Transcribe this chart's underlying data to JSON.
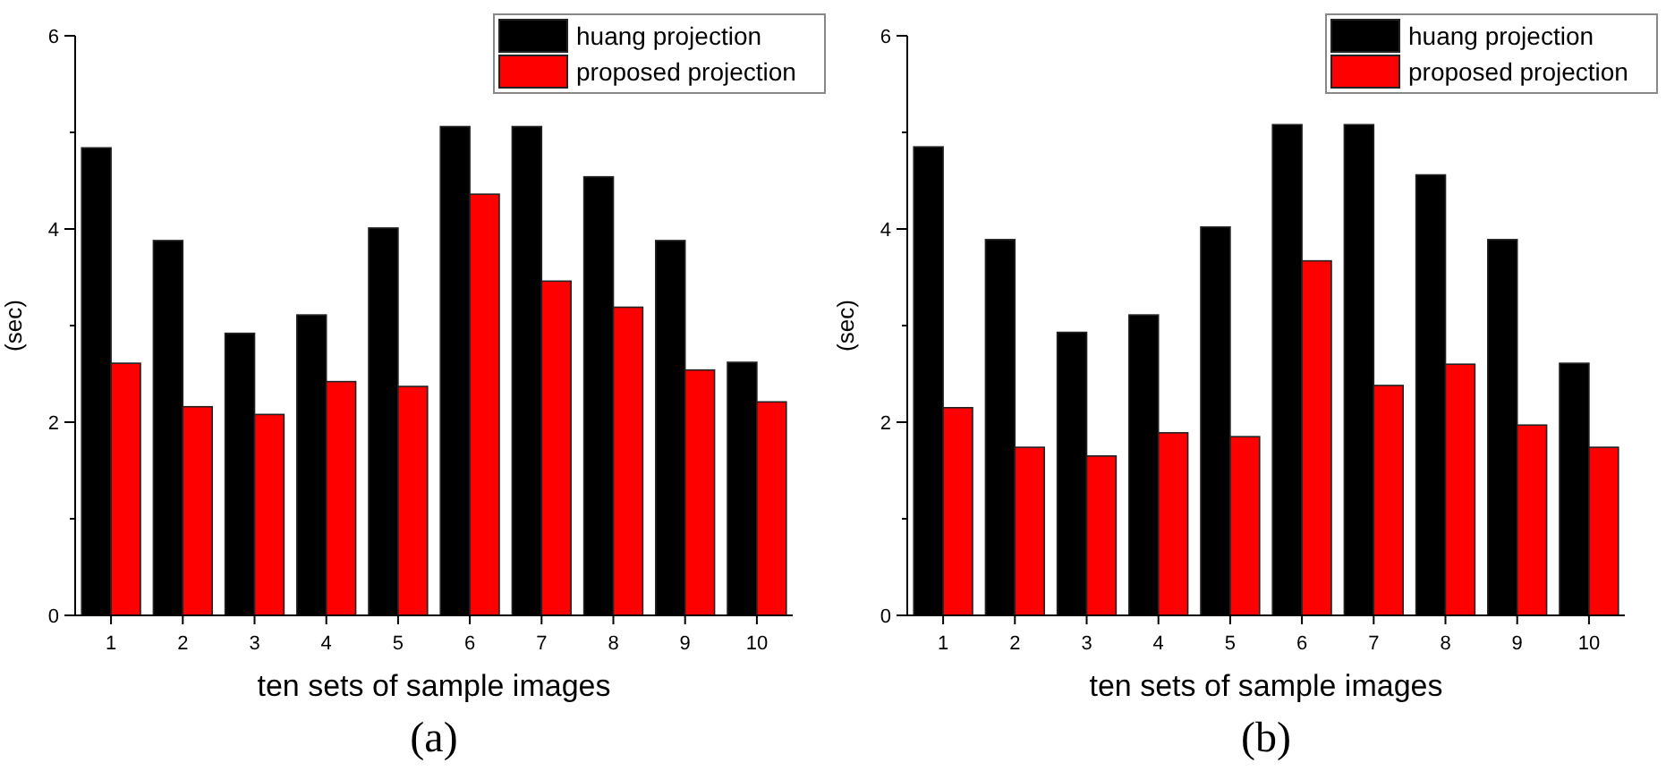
{
  "chart_data": [
    {
      "type": "bar",
      "title": "(a)",
      "xlabel": "ten sets of sample images",
      "ylabel": "(sec)",
      "categories": [
        "1",
        "2",
        "3",
        "4",
        "5",
        "6",
        "7",
        "8",
        "9",
        "10"
      ],
      "series": [
        {
          "name": "huang projection",
          "color": "#000000",
          "values": [
            4.84,
            3.88,
            2.92,
            3.11,
            4.01,
            5.06,
            5.06,
            4.54,
            3.88,
            2.62
          ]
        },
        {
          "name": "proposed projection",
          "color": "#ff0000",
          "values": [
            2.61,
            2.16,
            2.08,
            2.42,
            2.37,
            4.36,
            3.46,
            3.19,
            2.54,
            2.21
          ]
        }
      ],
      "ylim": [
        0,
        6
      ],
      "yticks": [
        0,
        {
          "value": 1,
          "label": null
        },
        2,
        {
          "value": 3,
          "label": null
        },
        4,
        {
          "value": 5,
          "label": null
        },
        6
      ],
      "legend": "top right",
      "grid": false
    },
    {
      "type": "bar",
      "title": "(b)",
      "xlabel": "ten sets of sample images",
      "ylabel": "(sec)",
      "categories": [
        "1",
        "2",
        "3",
        "4",
        "5",
        "6",
        "7",
        "8",
        "9",
        "10"
      ],
      "series": [
        {
          "name": "huang projection",
          "color": "#000000",
          "values": [
            4.85,
            3.89,
            2.93,
            3.11,
            4.02,
            5.08,
            5.08,
            4.56,
            3.89,
            2.61
          ]
        },
        {
          "name": "proposed projection",
          "color": "#ff0000",
          "values": [
            2.15,
            1.74,
            1.65,
            1.89,
            1.85,
            3.67,
            2.38,
            2.6,
            1.97,
            1.74
          ]
        }
      ],
      "ylim": [
        0,
        6
      ],
      "yticks": [
        0,
        {
          "value": 1,
          "label": null
        },
        2,
        {
          "value": 3,
          "label": null
        },
        4,
        {
          "value": 5,
          "label": null
        },
        6
      ],
      "legend": "top right",
      "grid": false
    }
  ]
}
